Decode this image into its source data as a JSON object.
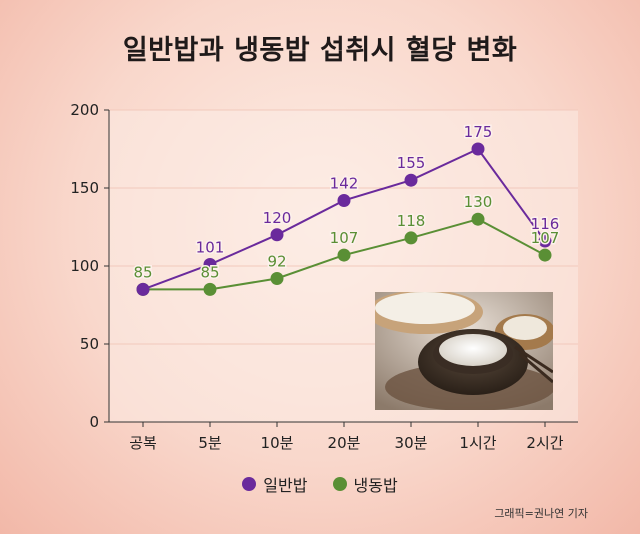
{
  "colors": {
    "general_rice": "#6a2a9c",
    "frozen_rice": "#5a8f35",
    "axis": "#333333",
    "grid": "#f2c9bc"
  },
  "chart_data": {
    "type": "line",
    "title": "일반밥과 냉동밥 섭취시 혈당 변화",
    "categories": [
      "공복",
      "5분",
      "10분",
      "20분",
      "30분",
      "1시간",
      "2시간"
    ],
    "series": [
      {
        "name": "일반밥",
        "values": [
          85,
          101,
          120,
          142,
          155,
          175,
          116
        ]
      },
      {
        "name": "냉동밥",
        "values": [
          85,
          85,
          92,
          107,
          118,
          130,
          107
        ]
      }
    ],
    "yticks": [
      0,
      50,
      100,
      150,
      200
    ],
    "ylim": [
      0,
      200
    ],
    "xlabel": "",
    "ylabel": "",
    "legend_position": "bottom",
    "grid": true
  },
  "credit": "그래픽=권나연 기자",
  "photo": {
    "icon": "rice-bowl-photo"
  }
}
